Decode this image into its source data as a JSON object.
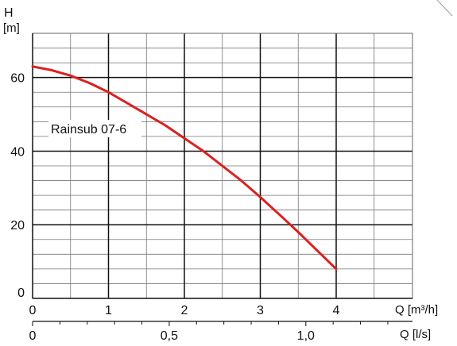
{
  "chart_data": {
    "type": "line",
    "title": "",
    "ylabel_top": "H",
    "ylabel_unit": "[m]",
    "xlabel": "Q [m³/h]",
    "xlabel2": "Q [l/s]",
    "xlim": [
      0,
      5
    ],
    "ylim": [
      0,
      72
    ],
    "x_ticks": [
      "0",
      "1",
      "2",
      "3",
      "4"
    ],
    "y_ticks": [
      "0",
      "20",
      "40",
      "60"
    ],
    "x2_ticks": [
      "0",
      "0,5",
      "1,0"
    ],
    "grid": true,
    "series": [
      {
        "name": "Rainsub 07-6",
        "color": "#dd1f1f",
        "x": [
          0,
          0.25,
          0.5,
          0.75,
          1.0,
          1.25,
          1.5,
          1.75,
          2.0,
          2.25,
          2.5,
          2.75,
          3.0,
          3.25,
          3.5,
          3.75,
          4.0
        ],
        "y": [
          63.0,
          62.0,
          60.5,
          58.5,
          56.0,
          53.0,
          50.0,
          47.0,
          43.5,
          40.0,
          36.0,
          32.0,
          27.5,
          22.8,
          18.0,
          13.0,
          8.0
        ]
      }
    ]
  }
}
